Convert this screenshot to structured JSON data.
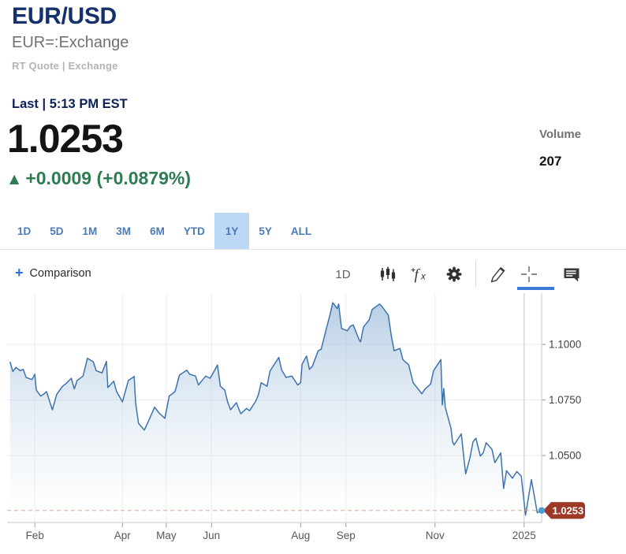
{
  "header": {
    "title": "EUR/USD",
    "subtitle": "EUR=:Exchange",
    "quote_type": "RT Quote | Exchange"
  },
  "quote": {
    "last_label": "Last | 5:13 PM EST",
    "price": "1.0253",
    "direction_icon": "▲",
    "change": "+0.0009 (+0.0879%)",
    "volume_label": "Volume",
    "volume": "207"
  },
  "range_tabs": {
    "items": [
      "1D",
      "5D",
      "1M",
      "3M",
      "6M",
      "YTD",
      "1Y",
      "5Y",
      "ALL"
    ],
    "selected": "1Y"
  },
  "toolbar": {
    "plus_icon": "+",
    "comparison_label": "Comparison",
    "interval": "1D",
    "icons": [
      "candlestick-chart-icon",
      "function-fx-icon",
      "settings-gear-icon",
      "draw-pencil-icon",
      "crosshair-icon",
      "comments-icon"
    ],
    "selected_tool": "crosshair"
  },
  "colors": {
    "navy": "#14316b",
    "navy2": "#0c2157",
    "green": "#2e7d52",
    "tabblue": "#4a7bb4",
    "tabbg": "#bcd8f5",
    "plusblue": "#2f6bd9",
    "accent": "#3e7bd8"
  },
  "chart_data": {
    "type": "area",
    "title": "EUR/USD 1Y price chart",
    "x_domain": [
      "2024-01-13",
      "2025-01-13"
    ],
    "y_domain": [
      1.0199,
      1.1231
    ],
    "grid": true,
    "line_color": "#3c72b0",
    "badge_color": "#9d3a27",
    "marker_color": "#4b9bd8",
    "dashed_line_color": "#dca695",
    "emphasized_x_tick": "2025",
    "y_ticks": [
      {
        "label": "1.1000",
        "value": 1.1
      },
      {
        "label": "1.0750",
        "value": 1.075
      },
      {
        "label": "1.0500",
        "value": 1.05
      }
    ],
    "x_ticks": [
      {
        "label": "Feb",
        "date": "2024-02-01"
      },
      {
        "label": "Apr",
        "date": "2024-04-01"
      },
      {
        "label": "May",
        "date": "2024-05-01"
      },
      {
        "label": "Jun",
        "date": "2024-06-01"
      },
      {
        "label": "Aug",
        "date": "2024-08-01"
      },
      {
        "label": "Sep",
        "date": "2024-09-01"
      },
      {
        "label": "Nov",
        "date": "2024-11-01"
      },
      {
        "label": "2025",
        "date": "2025-01-01"
      }
    ],
    "last": {
      "label": "1.0253",
      "value": 1.0253
    },
    "points": [
      [
        "2024-01-15",
        1.0922
      ],
      [
        "2024-01-17",
        1.0878
      ],
      [
        "2024-01-19",
        1.0897
      ],
      [
        "2024-01-22",
        1.0882
      ],
      [
        "2024-01-24",
        1.0888
      ],
      [
        "2024-01-26",
        1.0852
      ],
      [
        "2024-01-30",
        1.0842
      ],
      [
        "2024-02-01",
        1.0866
      ],
      [
        "2024-02-02",
        1.0795
      ],
      [
        "2024-02-05",
        1.0768
      ],
      [
        "2024-02-07",
        1.0776
      ],
      [
        "2024-02-09",
        1.0788
      ],
      [
        "2024-02-13",
        1.0706
      ],
      [
        "2024-02-16",
        1.0776
      ],
      [
        "2024-02-20",
        1.0812
      ],
      [
        "2024-02-22",
        1.0822
      ],
      [
        "2024-02-26",
        1.0848
      ],
      [
        "2024-02-28",
        1.08
      ],
      [
        "2024-03-01",
        1.0838
      ],
      [
        "2024-03-05",
        1.0858
      ],
      [
        "2024-03-08",
        1.0938
      ],
      [
        "2024-03-12",
        1.0922
      ],
      [
        "2024-03-14",
        1.0882
      ],
      [
        "2024-03-18",
        1.0872
      ],
      [
        "2024-03-21",
        1.0924
      ],
      [
        "2024-03-22",
        1.0806
      ],
      [
        "2024-03-26",
        1.0835
      ],
      [
        "2024-03-28",
        1.0788
      ],
      [
        "2024-04-01",
        1.0742
      ],
      [
        "2024-04-05",
        1.0838
      ],
      [
        "2024-04-09",
        1.0856
      ],
      [
        "2024-04-10",
        1.0738
      ],
      [
        "2024-04-12",
        1.0645
      ],
      [
        "2024-04-16",
        1.0615
      ],
      [
        "2024-04-19",
        1.0658
      ],
      [
        "2024-04-23",
        1.0718
      ],
      [
        "2024-04-26",
        1.0692
      ],
      [
        "2024-04-30",
        1.0668
      ],
      [
        "2024-05-03",
        1.0768
      ],
      [
        "2024-05-07",
        1.0788
      ],
      [
        "2024-05-10",
        1.0862
      ],
      [
        "2024-05-15",
        1.0884
      ],
      [
        "2024-05-17",
        1.0866
      ],
      [
        "2024-05-21",
        1.0858
      ],
      [
        "2024-05-23",
        1.0818
      ],
      [
        "2024-05-28",
        1.0858
      ],
      [
        "2024-05-31",
        1.0848
      ],
      [
        "2024-06-04",
        1.0895
      ],
      [
        "2024-06-05",
        1.0908
      ],
      [
        "2024-06-07",
        1.0812
      ],
      [
        "2024-06-10",
        1.0795
      ],
      [
        "2024-06-12",
        1.0742
      ],
      [
        "2024-06-14",
        1.0706
      ],
      [
        "2024-06-18",
        1.0738
      ],
      [
        "2024-06-21",
        1.0688
      ],
      [
        "2024-06-25",
        1.0712
      ],
      [
        "2024-06-27",
        1.0702
      ],
      [
        "2024-07-01",
        1.0742
      ],
      [
        "2024-07-03",
        1.0772
      ],
      [
        "2024-07-05",
        1.0828
      ],
      [
        "2024-07-09",
        1.0812
      ],
      [
        "2024-07-11",
        1.088
      ],
      [
        "2024-07-17",
        1.0942
      ],
      [
        "2024-07-19",
        1.0885
      ],
      [
        "2024-07-22",
        1.0852
      ],
      [
        "2024-07-26",
        1.0858
      ],
      [
        "2024-07-30",
        1.0818
      ],
      [
        "2024-08-01",
        1.0828
      ],
      [
        "2024-08-02",
        1.0912
      ],
      [
        "2024-08-05",
        1.0948
      ],
      [
        "2024-08-07",
        1.0888
      ],
      [
        "2024-08-09",
        1.0902
      ],
      [
        "2024-08-13",
        1.0972
      ],
      [
        "2024-08-15",
        1.0978
      ],
      [
        "2024-08-19",
        1.1082
      ],
      [
        "2024-08-21",
        1.1132
      ],
      [
        "2024-08-23",
        1.1188
      ],
      [
        "2024-08-26",
        1.1162
      ],
      [
        "2024-08-27",
        1.1182
      ],
      [
        "2024-08-29",
        1.1072
      ],
      [
        "2024-09-02",
        1.1062
      ],
      [
        "2024-09-04",
        1.1082
      ],
      [
        "2024-09-06",
        1.1088
      ],
      [
        "2024-09-10",
        1.1022
      ],
      [
        "2024-09-11",
        1.1012
      ],
      [
        "2024-09-13",
        1.1078
      ],
      [
        "2024-09-17",
        1.1112
      ],
      [
        "2024-09-19",
        1.1158
      ],
      [
        "2024-09-24",
        1.1182
      ],
      [
        "2024-09-26",
        1.1168
      ],
      [
        "2024-09-30",
        1.1132
      ],
      [
        "2024-10-02",
        1.1042
      ],
      [
        "2024-10-04",
        1.0972
      ],
      [
        "2024-10-08",
        1.0982
      ],
      [
        "2024-10-10",
        1.0932
      ],
      [
        "2024-10-14",
        1.0908
      ],
      [
        "2024-10-17",
        1.0828
      ],
      [
        "2024-10-23",
        1.0778
      ],
      [
        "2024-10-25",
        1.0798
      ],
      [
        "2024-10-29",
        1.0822
      ],
      [
        "2024-10-31",
        1.0882
      ],
      [
        "2024-11-05",
        1.0932
      ],
      [
        "2024-11-06",
        1.0728
      ],
      [
        "2024-11-07",
        1.0802
      ],
      [
        "2024-11-08",
        1.0718
      ],
      [
        "2024-11-12",
        1.0622
      ],
      [
        "2024-11-13",
        1.0562
      ],
      [
        "2024-11-14",
        1.0548
      ],
      [
        "2024-11-19",
        1.0598
      ],
      [
        "2024-11-21",
        1.0475
      ],
      [
        "2024-11-22",
        1.0418
      ],
      [
        "2024-11-25",
        1.0492
      ],
      [
        "2024-11-27",
        1.0562
      ],
      [
        "2024-11-29",
        1.0578
      ],
      [
        "2024-12-02",
        1.0498
      ],
      [
        "2024-12-04",
        1.0512
      ],
      [
        "2024-12-06",
        1.0558
      ],
      [
        "2024-12-10",
        1.0528
      ],
      [
        "2024-12-12",
        1.0468
      ],
      [
        "2024-12-16",
        1.0512
      ],
      [
        "2024-12-18",
        1.0352
      ],
      [
        "2024-12-20",
        1.0432
      ],
      [
        "2024-12-24",
        1.0398
      ],
      [
        "2024-12-27",
        1.0428
      ],
      [
        "2024-12-30",
        1.0408
      ],
      [
        "2025-01-02",
        1.0232
      ],
      [
        "2025-01-06",
        1.0392
      ],
      [
        "2025-01-08",
        1.0318
      ],
      [
        "2025-01-10",
        1.0243
      ],
      [
        "2025-01-13",
        1.0253
      ]
    ]
  }
}
